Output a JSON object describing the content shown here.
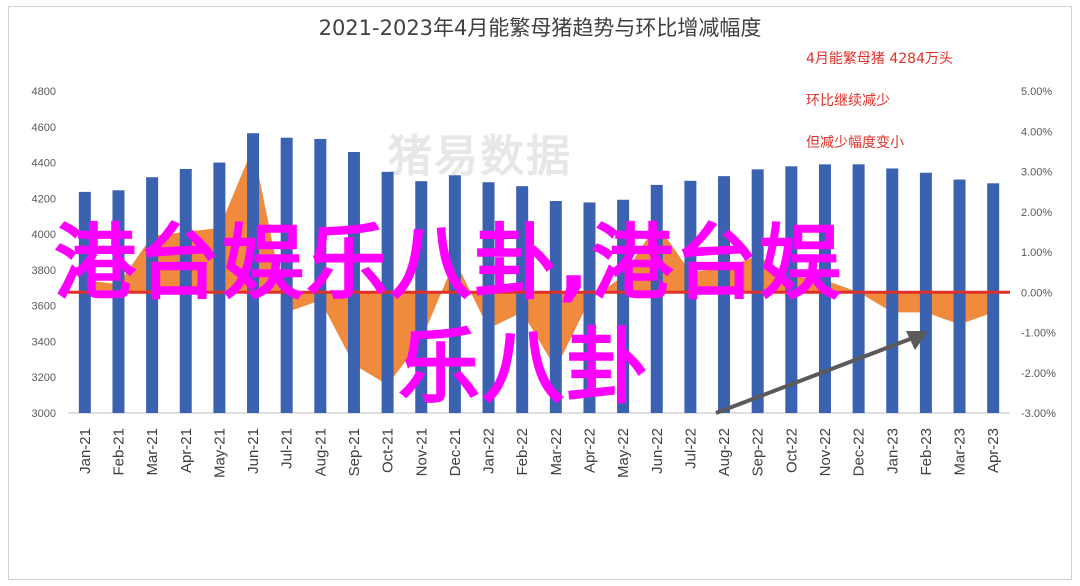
{
  "chart_data": {
    "type": "bar",
    "title": "2021-2023年4月能繁母猪趋势与环比增减幅度",
    "categories": [
      "Jan-21",
      "Feb-21",
      "Mar-21",
      "Apr-21",
      "May-21",
      "Jun-21",
      "Jul-21",
      "Aug-21",
      "Sep-21",
      "Oct-21",
      "Nov-21",
      "Dec-21",
      "Jan-22",
      "Feb-22",
      "Mar-22",
      "Apr-22",
      "May-22",
      "Jun-22",
      "Jul-22",
      "Aug-22",
      "Sep-22",
      "Oct-22",
      "Nov-22",
      "Dec-22",
      "Jan-23",
      "Feb-23",
      "Mar-23",
      "Apr-23"
    ],
    "series": [
      {
        "values": [
          4236,
          4245,
          4318,
          4364,
          4400,
          4564,
          4539,
          4532,
          4459,
          4348,
          4296,
          4329,
          4290,
          4268,
          4185,
          4177,
          4192,
          4275,
          4298,
          4324,
          4362,
          4379,
          4390,
          4390,
          4367,
          4343,
          4305,
          4284
        ],
        "color": "#3a62b0",
        "axis": "left"
      },
      {
        "values": [
          0.3,
          0.2,
          1.4,
          1.5,
          1.6,
          3.6,
          -0.5,
          -0.2,
          -1.8,
          -2.3,
          -1.2,
          0.8,
          -0.9,
          -0.5,
          -1.9,
          -0.2,
          0.4,
          1.7,
          0.5,
          0.6,
          0.9,
          0.4,
          0.3,
          0.0,
          -0.5,
          -0.5,
          -0.8,
          -0.5
        ],
        "color": "#f08a3c",
        "kind": "area",
        "axis": "right"
      }
    ],
    "ylim": [
      3000,
      4800
    ],
    "yticks": [
      "3000",
      "3200",
      "3400",
      "3600",
      "3800",
      "4000",
      "4200",
      "4400",
      "4600",
      "4800"
    ],
    "y2lim": [
      -3.0,
      5.0
    ],
    "y2ticks": [
      "-3.00%",
      "-2.00%",
      "-1.00%",
      "0.00%",
      "1.00%",
      "2.00%",
      "3.00%",
      "4.00%",
      "5.00%"
    ],
    "reference_line": 0.0,
    "annotations": [
      "4月能繁母猪 4284万头",
      "环比继续减少",
      "但减少幅度变小"
    ]
  },
  "watermark": "猪易数据",
  "overlay": {
    "line1": "港台娱乐八卦,港台娱",
    "line2": "乐八卦"
  }
}
